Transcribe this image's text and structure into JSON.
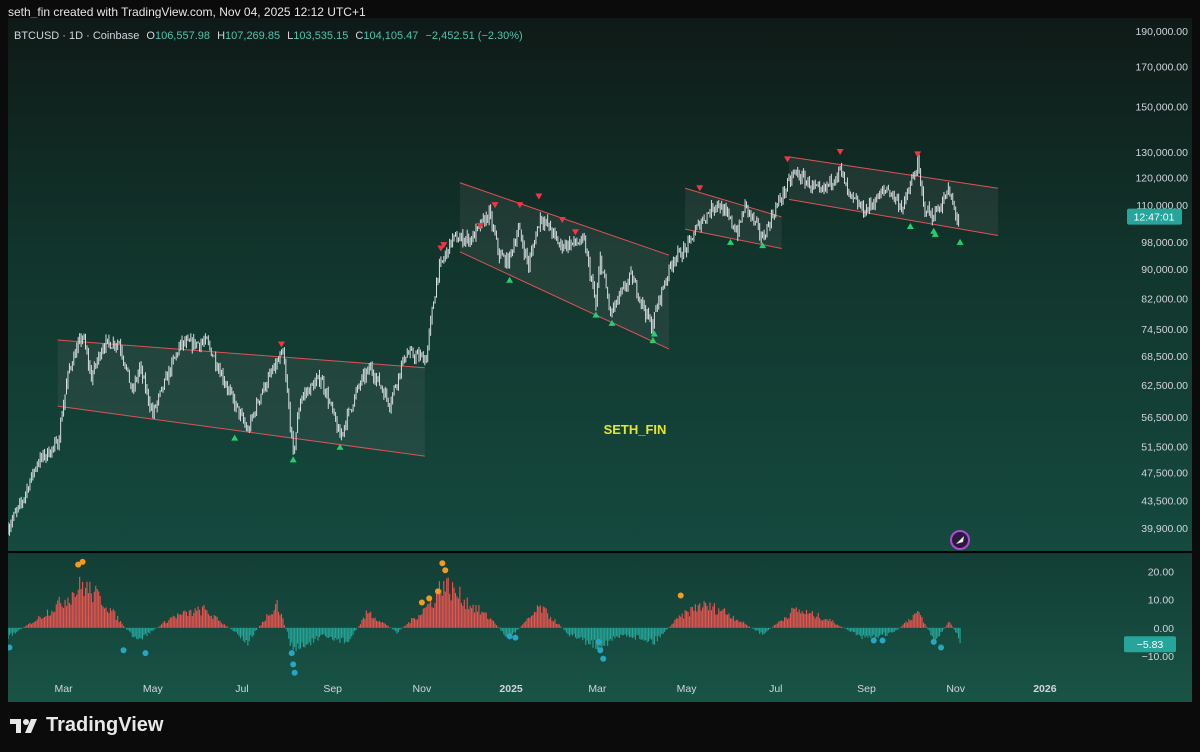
{
  "header": {
    "credit": "seth_fin created with TradingView.com, Nov 04, 2025 12:12 UTC+1"
  },
  "legend": {
    "symbol": "BTCUSD · 1D · Coinbase",
    "o_label": "O",
    "o": "106,557.98",
    "h_label": "H",
    "h": "107,269.85",
    "l_label": "L",
    "l": "103,535.15",
    "c_label": "C",
    "c": "104,105.47",
    "change": "−2,452.51 (−2.30%)"
  },
  "watermark": "SETH_FIN",
  "footer": {
    "brand": "TradingView"
  },
  "colors": {
    "up": "#dfe6e6",
    "candle": "#d8dee0",
    "down_marker": "#f23645",
    "up_marker": "#22d16b",
    "channel_line": "#e0505a",
    "osc_pos": "#ef5350",
    "osc_neg": "#26a69a",
    "osc_hot": "#f29b1f",
    "osc_cold": "#26a6c2",
    "accent": "#26a69a",
    "watermark": "#e6e62e"
  },
  "chart_data": [
    {
      "type": "line",
      "title": "BTCUSD · 1D · Coinbase",
      "price_scale": "log",
      "y_ticks": [
        39900,
        43500,
        47500,
        51500,
        56500,
        62500,
        68500,
        74500,
        82000,
        90000,
        98000,
        110000,
        120000,
        130000,
        150000,
        170000,
        190000
      ],
      "y_tick_labels": [
        "39,900.00",
        "43,500.00",
        "47,500.00",
        "51,500.00",
        "56,500.00",
        "62,500.00",
        "68,500.00",
        "74,500.00",
        "82,000.00",
        "90,000.00",
        "98,000.00",
        "110,000.00",
        "120,000.00",
        "130,000.00",
        "150,000.00",
        "170,000.00",
        "190,000.00"
      ],
      "x_labels": [
        {
          "t": "2024-03-01",
          "label": "Mar"
        },
        {
          "t": "2024-05-01",
          "label": "May"
        },
        {
          "t": "2024-07-01",
          "label": "Jul"
        },
        {
          "t": "2024-09-01",
          "label": "Sep"
        },
        {
          "t": "2024-11-01",
          "label": "Nov"
        },
        {
          "t": "2025-01-01",
          "label": "2025"
        },
        {
          "t": "2025-03-01",
          "label": "Mar"
        },
        {
          "t": "2025-05-01",
          "label": "May"
        },
        {
          "t": "2025-07-01",
          "label": "Jul"
        },
        {
          "t": "2025-09-01",
          "label": "Sep"
        },
        {
          "t": "2025-11-01",
          "label": "Nov"
        },
        {
          "t": "2026-01-01",
          "label": "2026"
        }
      ],
      "x_range": [
        "2024-01-23",
        "2026-02-20"
      ],
      "y_range": [
        37000,
        198000
      ],
      "countdown_label": "12:47:01",
      "last_price": 104105,
      "price_path": [
        [
          "2024-01-23",
          40000
        ],
        [
          "2024-02-01",
          43000
        ],
        [
          "2024-02-12",
          49000
        ],
        [
          "2024-02-26",
          52000
        ],
        [
          "2024-03-05",
          66000
        ],
        [
          "2024-03-14",
          73000
        ],
        [
          "2024-03-20",
          64000
        ],
        [
          "2024-03-28",
          71000
        ],
        [
          "2024-04-08",
          71500
        ],
        [
          "2024-04-17",
          61000
        ],
        [
          "2024-04-22",
          66000
        ],
        [
          "2024-05-01",
          57000
        ],
        [
          "2024-05-08",
          62000
        ],
        [
          "2024-05-20",
          71000
        ],
        [
          "2024-06-07",
          71500
        ],
        [
          "2024-06-24",
          60000
        ],
        [
          "2024-07-05",
          54000
        ],
        [
          "2024-07-14",
          61000
        ],
        [
          "2024-07-29",
          69000
        ],
        [
          "2024-08-05",
          50000
        ],
        [
          "2024-08-10",
          60000
        ],
        [
          "2024-08-24",
          64000
        ],
        [
          "2024-09-06",
          53000
        ],
        [
          "2024-09-20",
          63000
        ],
        [
          "2024-09-27",
          66000
        ],
        [
          "2024-10-10",
          59000
        ],
        [
          "2024-10-21",
          69000
        ],
        [
          "2024-11-04",
          68000
        ],
        [
          "2024-11-12",
          89000
        ],
        [
          "2024-11-22",
          99000
        ],
        [
          "2024-12-05",
          99000
        ],
        [
          "2024-12-17",
          107000
        ],
        [
          "2024-12-24",
          94000
        ],
        [
          "2024-12-30",
          92000
        ],
        [
          "2025-01-06",
          102000
        ],
        [
          "2025-01-13",
          91000
        ],
        [
          "2025-01-21",
          106000
        ],
        [
          "2025-01-28",
          102000
        ],
        [
          "2025-02-03",
          97000
        ],
        [
          "2025-02-20",
          98000
        ],
        [
          "2025-02-28",
          80000
        ],
        [
          "2025-03-03",
          93000
        ],
        [
          "2025-03-10",
          78000
        ],
        [
          "2025-03-24",
          88000
        ],
        [
          "2025-04-07",
          75000
        ],
        [
          "2025-04-14",
          84000
        ],
        [
          "2025-04-22",
          93000
        ],
        [
          "2025-05-01",
          96000
        ],
        [
          "2025-05-10",
          104000
        ],
        [
          "2025-05-22",
          111000
        ],
        [
          "2025-06-05",
          101000
        ],
        [
          "2025-06-10",
          110000
        ],
        [
          "2025-06-22",
          99000
        ],
        [
          "2025-06-30",
          108000
        ],
        [
          "2025-07-14",
          122000
        ],
        [
          "2025-08-01",
          114000
        ],
        [
          "2025-08-14",
          123000
        ],
        [
          "2025-08-20",
          113000
        ],
        [
          "2025-08-31",
          108000
        ],
        [
          "2025-09-15",
          116000
        ],
        [
          "2025-09-26",
          109000
        ],
        [
          "2025-10-06",
          125000
        ],
        [
          "2025-10-10",
          110000
        ],
        [
          "2025-10-16",
          106000
        ],
        [
          "2025-10-23",
          111000
        ],
        [
          "2025-10-27",
          115000
        ],
        [
          "2025-11-03",
          104105
        ]
      ],
      "channels": [
        {
          "upper": [
            [
              "2024-02-26",
              72000
            ],
            [
              "2024-11-03",
              66000
            ]
          ],
          "lower": [
            [
              "2024-02-26",
              58500
            ],
            [
              "2024-11-03",
              50000
            ]
          ]
        },
        {
          "upper": [
            [
              "2024-11-27",
              118000
            ],
            [
              "2025-04-19",
              94000
            ]
          ],
          "lower": [
            [
              "2024-11-27",
              95000
            ],
            [
              "2025-04-19",
              70000
            ]
          ]
        },
        {
          "upper": [
            [
              "2025-04-30",
              116000
            ],
            [
              "2025-07-05",
              106000
            ]
          ],
          "lower": [
            [
              "2025-04-30",
              102000
            ],
            [
              "2025-07-05",
              96000
            ]
          ]
        },
        {
          "upper": [
            [
              "2025-07-10",
              128000
            ],
            [
              "2025-11-30",
              116000
            ]
          ],
          "lower": [
            [
              "2025-07-10",
              112000
            ],
            [
              "2025-11-30",
              100000
            ]
          ]
        }
      ],
      "down_markers": [
        [
          "2024-07-28",
          71000
        ],
        [
          "2024-11-14",
          96000
        ],
        [
          "2024-11-16",
          97000
        ],
        [
          "2024-12-11",
          103000
        ],
        [
          "2024-12-21",
          110000
        ],
        [
          "2025-01-07",
          110000
        ],
        [
          "2025-01-20",
          113000
        ],
        [
          "2025-02-05",
          105000
        ],
        [
          "2025-02-14",
          101000
        ],
        [
          "2025-05-10",
          116000
        ],
        [
          "2025-07-09",
          127000
        ],
        [
          "2025-08-14",
          130000
        ],
        [
          "2025-10-06",
          129000
        ]
      ],
      "up_markers": [
        [
          "2024-06-26",
          53000
        ],
        [
          "2024-08-05",
          49500
        ],
        [
          "2024-09-06",
          51500
        ],
        [
          "2024-12-31",
          87000
        ],
        [
          "2025-02-28",
          78000
        ],
        [
          "2025-03-11",
          76000
        ],
        [
          "2025-04-08",
          72000
        ],
        [
          "2025-04-09",
          73500
        ],
        [
          "2025-05-31",
          98000
        ],
        [
          "2025-06-22",
          97000
        ],
        [
          "2025-10-01",
          103000
        ],
        [
          "2025-10-17",
          101500
        ],
        [
          "2025-10-18",
          100500
        ],
        [
          "2025-11-04",
          98000
        ]
      ]
    },
    {
      "type": "bar",
      "title": "",
      "y_ticks": [
        20,
        10,
        0,
        -10
      ],
      "y_tick_labels": [
        "20.00",
        "10.00",
        "0.00",
        "−10.00"
      ],
      "y_range": [
        -20,
        27
      ],
      "last_value": -5.83,
      "last_value_label": "−5.83",
      "envelope": [
        [
          "2024-01-23",
          -4
        ],
        [
          "2024-02-10",
          3
        ],
        [
          "2024-03-01",
          12
        ],
        [
          "2024-03-14",
          19
        ],
        [
          "2024-03-28",
          12
        ],
        [
          "2024-04-20",
          -6
        ],
        [
          "2024-05-15",
          5
        ],
        [
          "2024-06-05",
          8
        ],
        [
          "2024-07-05",
          -6
        ],
        [
          "2024-07-25",
          11
        ],
        [
          "2024-08-05",
          -10
        ],
        [
          "2024-08-25",
          -4
        ],
        [
          "2024-09-12",
          -6
        ],
        [
          "2024-09-25",
          7
        ],
        [
          "2024-10-15",
          -2
        ],
        [
          "2024-10-30",
          6
        ],
        [
          "2024-11-10",
          13
        ],
        [
          "2024-11-15",
          20
        ],
        [
          "2024-12-01",
          12
        ],
        [
          "2024-12-20",
          3
        ],
        [
          "2024-12-30",
          -5
        ],
        [
          "2025-01-21",
          9
        ],
        [
          "2025-02-10",
          -3
        ],
        [
          "2025-03-01",
          -8
        ],
        [
          "2025-03-20",
          -3
        ],
        [
          "2025-04-09",
          -6
        ],
        [
          "2025-04-25",
          4
        ],
        [
          "2025-05-10",
          10
        ],
        [
          "2025-05-25",
          8
        ],
        [
          "2025-06-22",
          -3
        ],
        [
          "2025-07-14",
          8
        ],
        [
          "2025-08-05",
          4
        ],
        [
          "2025-08-31",
          -5
        ],
        [
          "2025-09-20",
          -2
        ],
        [
          "2025-10-06",
          7
        ],
        [
          "2025-10-18",
          -6
        ],
        [
          "2025-10-28",
          3
        ],
        [
          "2025-11-04",
          -5.83
        ]
      ],
      "hot_dots": [
        [
          "2024-03-11",
          22.5
        ],
        [
          "2024-03-14",
          23.5
        ],
        [
          "2024-11-01",
          9
        ],
        [
          "2024-11-06",
          10.5
        ],
        [
          "2024-11-12",
          13
        ],
        [
          "2024-11-15",
          23
        ],
        [
          "2024-11-17",
          20.5
        ],
        [
          "2025-04-27",
          11.5
        ]
      ],
      "cold_dots": [
        [
          "2024-01-24",
          -7
        ],
        [
          "2024-04-11",
          -8
        ],
        [
          "2024-04-26",
          -9
        ],
        [
          "2024-08-04",
          -9
        ],
        [
          "2024-08-05",
          -13
        ],
        [
          "2024-08-06",
          -16
        ],
        [
          "2024-12-31",
          -3
        ],
        [
          "2025-01-04",
          -3.5
        ],
        [
          "2025-03-02",
          -5
        ],
        [
          "2025-03-05",
          -11
        ],
        [
          "2025-03-03",
          -8
        ],
        [
          "2025-09-06",
          -4.5
        ],
        [
          "2025-09-12",
          -4.5
        ],
        [
          "2025-10-17",
          -5
        ],
        [
          "2025-10-22",
          -7
        ]
      ]
    }
  ]
}
